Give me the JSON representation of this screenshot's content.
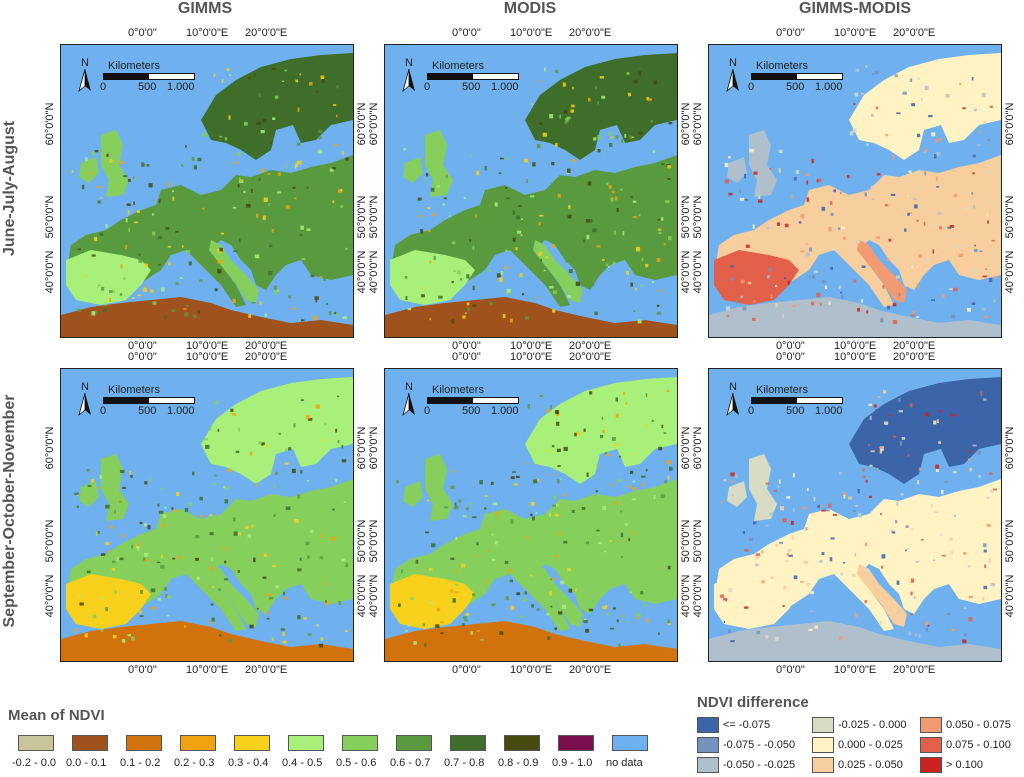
{
  "columns": [
    "GIMMS",
    "MODIS",
    "GIMMS-MODIS"
  ],
  "rows": [
    "June-July-August",
    "September-October-November"
  ],
  "lon_ticks": [
    "0°0'0\"",
    "10°0'0\"E",
    "20°0'0\"E"
  ],
  "lat_ticks": [
    "60°0'0\"N",
    "50°0'0\"N",
    "40°0'0\"N"
  ],
  "scalebar": {
    "north": "N",
    "title": "Kilometers",
    "labels": [
      "0",
      "500",
      "1.000"
    ]
  },
  "ndvi_legend": {
    "title": "Mean of NDVI",
    "items": [
      {
        "label": "-0.2 - 0.0",
        "color": "#c9c59a"
      },
      {
        "label": "0.0 - 0.1",
        "color": "#a0521c"
      },
      {
        "label": "0.1 - 0.2",
        "color": "#d2720c"
      },
      {
        "label": "0.2 - 0.3",
        "color": "#f2a20e"
      },
      {
        "label": "0.3 - 0.4",
        "color": "#f7d11c"
      },
      {
        "label": "0.4 - 0.5",
        "color": "#a8f07a"
      },
      {
        "label": "0.5 - 0.6",
        "color": "#86cf5c"
      },
      {
        "label": "0.6 - 0.7",
        "color": "#5a9a3e"
      },
      {
        "label": "0.7 - 0.8",
        "color": "#3e6e2a"
      },
      {
        "label": "0.8 - 0.9",
        "color": "#454a0e"
      },
      {
        "label": "0.9 - 1.0",
        "color": "#7a0f4e"
      },
      {
        "label": "no data",
        "color": "#6fb1ee"
      }
    ]
  },
  "diff_legend": {
    "title": "NDVI difference",
    "items": [
      {
        "label": "<= -0.075",
        "color": "#3c64a8"
      },
      {
        "label": "-0.075 - -0.050",
        "color": "#7591bd"
      },
      {
        "label": "-0.050 - -0.025",
        "color": "#b0bfcc"
      },
      {
        "label": "-0.025 - 0.000",
        "color": "#d8dcc4"
      },
      {
        "label": "0.000 - 0.025",
        "color": "#fff3c4"
      },
      {
        "label": "0.025 - 0.050",
        "color": "#f7cf9e"
      },
      {
        "label": "0.050 - 0.075",
        "color": "#f29a72"
      },
      {
        "label": "0.075 - 0.100",
        "color": "#e2604a"
      },
      {
        "label": "> 0.100",
        "color": "#cc2222"
      }
    ]
  }
}
